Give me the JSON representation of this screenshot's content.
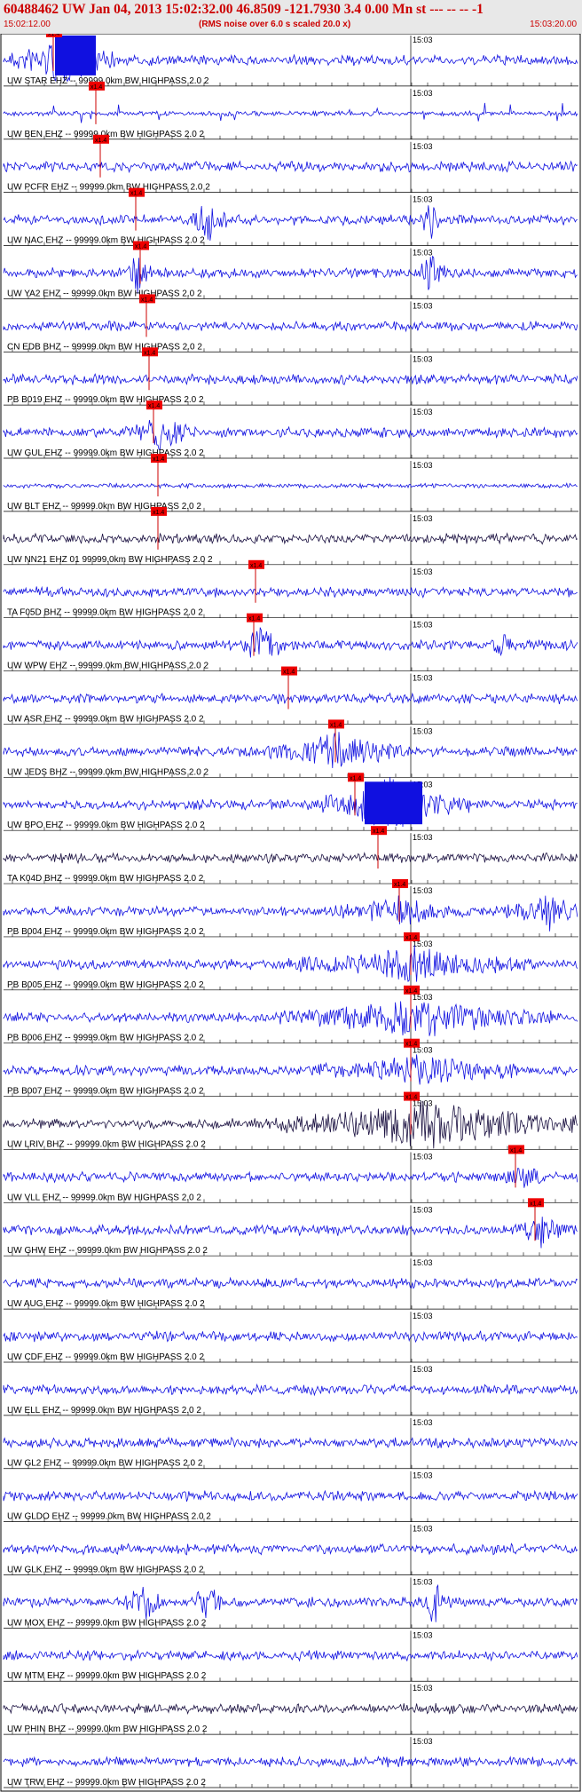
{
  "header": {
    "title": "60488462 UW Jan 04, 2013 15:02:32.00   46.8509 -121.7930  3.4 0.00 Mn st --- -- --  -1",
    "time_start": "15:02:12.00",
    "note": "(RMS noise over 6.0 s scaled 20.0 x)",
    "time_end": "15:03:20.00"
  },
  "colors": {
    "trace": "#1010e0",
    "trace_dark": "#1a1040",
    "pick_box": "#ee0000",
    "pick_line": "#cc0000",
    "axis": "#000000",
    "grid": "#000000"
  },
  "chart_data": {
    "type": "line",
    "title": "60488462 UW Jan 04, 2013 15:02:32.00   46.8509 -121.7930  3.4 0.00 Mn st --- -- --  -1",
    "x_range": [
      "15:02:12.00",
      "15:03:20.00"
    ],
    "minute_mark_label": "15:03",
    "pick_label": "x1.4",
    "traces": [
      {
        "label": "UW STAR EHZ -- 99999.0km BW  HIGHPASS  2.0  2",
        "pick": true
      },
      {
        "label": "UW BEN EHZ -- 99999.0km BW  HIGHPASS  2.0  2",
        "pick": true
      },
      {
        "label": "UW PCFR EHZ -- 99999.0km BW  HIGHPASS  2.0  2",
        "pick": true
      },
      {
        "label": "UW NAC EHZ -- 99999.0km BW  HIGHPASS  2.0  2",
        "pick": true
      },
      {
        "label": "UW YA2 EHZ -- 99999.0km BW  HIGHPASS  2.0  2",
        "pick": true
      },
      {
        "label": "CN EDB BHZ -- 99999.0km BW  HIGHPASS  2.0  2",
        "pick": true
      },
      {
        "label": "PB B019 EHZ -- 99999.0km BW  HIGHPASS  2.0  2",
        "pick": true
      },
      {
        "label": "UW GUL EHZ -- 99999.0km BW  HIGHPASS  2.0  2",
        "pick": true
      },
      {
        "label": "UW BLT EHZ -- 99999.0km BW  HIGHPASS  2.0  2",
        "pick": true
      },
      {
        "label": "UW NN21 EHZ 01 99999.0km BW  HIGHPASS  2.0  2",
        "pick": true
      },
      {
        "label": "TA F05D BHZ -- 99999.0km BW  HIGHPASS  2.0  2",
        "pick": true
      },
      {
        "label": "UW WPW EHZ -- 99999.0km BW  HIGHPASS  2.0  2",
        "pick": true
      },
      {
        "label": "UW ASR EHZ -- 99999.0km BW  HIGHPASS  2.0  2",
        "pick": true
      },
      {
        "label": "UW JEDS BHZ -- 99999.0km BW  HIGHPASS  2.0  2",
        "pick": true
      },
      {
        "label": "UW BPO EHZ -- 99999.0km BW  HIGHPASS  2.0  2",
        "pick": true
      },
      {
        "label": "TA K04D BHZ -- 99999.0km BW  HIGHPASS  2.0  2",
        "pick": true
      },
      {
        "label": "PB B004 EHZ -- 99999.0km BW  HIGHPASS  2.0  2",
        "pick": true
      },
      {
        "label": "PB B005 EHZ -- 99999.0km BW  HIGHPASS  2.0  2",
        "pick": true
      },
      {
        "label": "PB B006 EHZ -- 99999.0km BW  HIGHPASS  2.0  2",
        "pick": true
      },
      {
        "label": "PB B007 EHZ -- 99999.0km BW  HIGHPASS  2.0  2",
        "pick": true
      },
      {
        "label": "UW LRIV BHZ -- 99999.0km BW  HIGHPASS  2.0  2",
        "pick": true
      },
      {
        "label": "UW VLL EHZ -- 99999.0km BW  HIGHPASS  2.0  2",
        "pick": true
      },
      {
        "label": "UW GHW EHZ -- 99999.0km BW  HIGHPASS  2.0  2",
        "pick": true
      },
      {
        "label": "UW AUG EHZ -- 99999.0km BW  HIGHPASS  2.0  2",
        "pick": false
      },
      {
        "label": "UW CDF EHZ -- 99999.0km BW  HIGHPASS  2.0  2",
        "pick": false
      },
      {
        "label": "UW ELL EHZ -- 99999.0km BW  HIGHPASS  2.0  2",
        "pick": false
      },
      {
        "label": "UW GL2 EHZ -- 99999.0km BW  HIGHPASS  2.0  2",
        "pick": false
      },
      {
        "label": "UW GLDO EHZ -- 99999.0km BW  HIGHPASS  2.0  2",
        "pick": false
      },
      {
        "label": "UW GLK EHZ -- 99999.0km BW  HIGHPASS  2.0  2",
        "pick": false
      },
      {
        "label": "UW MOX EHZ -- 99999.0km BW  HIGHPASS  2.0  2",
        "pick": false
      },
      {
        "label": "UW MTM EHZ -- 99999.0km BW  HIGHPASS  2.0  2",
        "pick": false
      },
      {
        "label": "UW PHIN BHZ -- 99999.0km BW  HIGHPASS  2.0  2",
        "pick": false
      },
      {
        "label": "UW TRW EHZ -- 99999.0km BW  HIGHPASS  2.0  2",
        "pick": false
      }
    ]
  }
}
